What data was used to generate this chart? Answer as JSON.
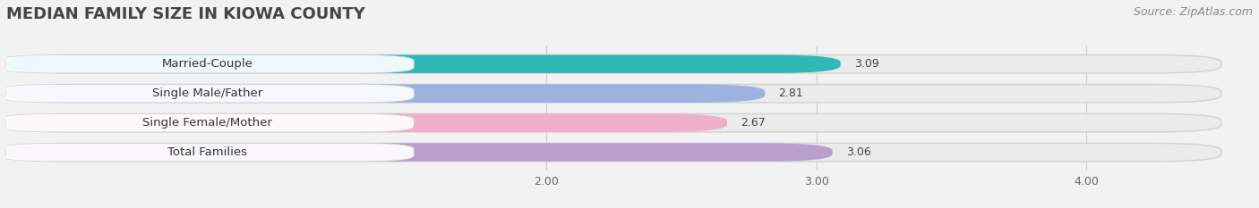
{
  "title": "MEDIAN FAMILY SIZE IN KIOWA COUNTY",
  "source": "Source: ZipAtlas.com",
  "categories": [
    "Married-Couple",
    "Single Male/Father",
    "Single Female/Mother",
    "Total Families"
  ],
  "values": [
    3.09,
    2.81,
    2.67,
    3.06
  ],
  "bar_colors": [
    "#30b8b8",
    "#9ab4df",
    "#f0afc8",
    "#b89fcc"
  ],
  "value_labels": [
    "3.09",
    "2.81",
    "2.67",
    "3.06"
  ],
  "xlim_left": 0.0,
  "xlim_right": 4.5,
  "xticks": [
    2.0,
    3.0,
    4.0
  ],
  "xtick_labels": [
    "2.00",
    "3.00",
    "4.00"
  ],
  "background_color": "#f2f2f2",
  "bar_background_color": "#e0e0e0",
  "row_background_color": "#ffffff",
  "title_fontsize": 13,
  "source_fontsize": 9,
  "label_fontsize": 9.5,
  "value_fontsize": 9,
  "tick_fontsize": 9
}
